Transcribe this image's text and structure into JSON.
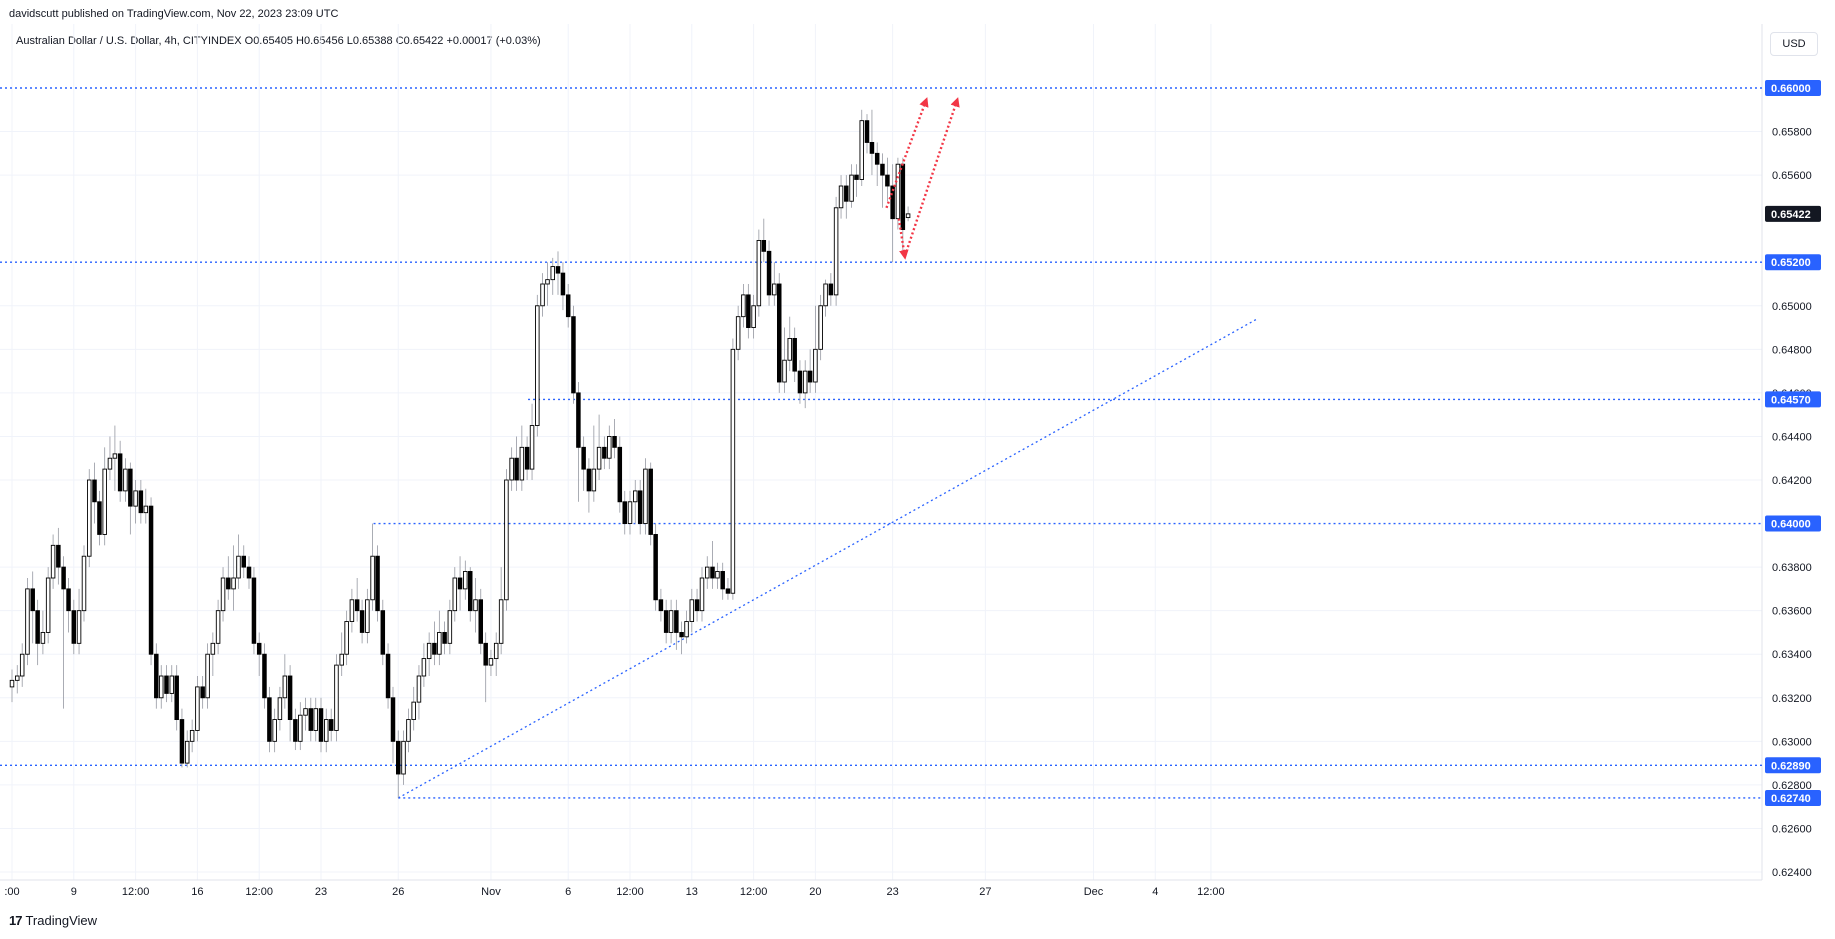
{
  "header": {
    "attribution": "davidscutt published on TradingView.com, Nov 22, 2023 23:09 UTC",
    "symbol_line": "Australian Dollar / U.S. Dollar, 4h, CITYINDEX  O0.65405  H0.65456  L0.65388  C0.65422  +0.00017 (+0.03%)",
    "currency": "USD"
  },
  "footer": {
    "logo_text": "TradingView",
    "logo_mark": "17"
  },
  "colors": {
    "level_line": "#2962ff",
    "arrow": "#f23645",
    "candle": "#000000",
    "current_badge": "#131722",
    "grid": "#f0f3fa"
  },
  "chart_data": {
    "type": "candlestick",
    "title": "Australian Dollar / U.S. Dollar, 4h, CITYINDEX",
    "ylim": [
      0.624,
      0.661
    ],
    "x_range_days": [
      0.0,
      40.5
    ],
    "y_ticks": [
      "0.65800",
      "0.65600",
      "0.65000",
      "0.64800",
      "0.64400",
      "0.64200",
      "0.63800",
      "0.63600",
      "0.63400",
      "0.63200",
      "0.63000",
      "0.62800",
      "0.62600"
    ],
    "y_ticks_partial": [
      "0.64600",
      "0.62400"
    ],
    "x_ticks": [
      {
        "label": ":00",
        "day": 0.0
      },
      {
        "label": "9",
        "day": 2.0
      },
      {
        "label": "12:00",
        "day": 4.0
      },
      {
        "label": "16",
        "day": 6.0
      },
      {
        "label": "12:00",
        "day": 8.0
      },
      {
        "label": "23",
        "day": 10.0
      },
      {
        "label": "26",
        "day": 12.5
      },
      {
        "label": "Nov",
        "day": 15.5
      },
      {
        "label": "6",
        "day": 18.0
      },
      {
        "label": "12:00",
        "day": 20.0
      },
      {
        "label": "13",
        "day": 22.0
      },
      {
        "label": "12:00",
        "day": 24.0
      },
      {
        "label": "20",
        "day": 26.0
      },
      {
        "label": "23",
        "day": 28.5
      },
      {
        "label": "27",
        "day": 31.5
      },
      {
        "label": "Dec",
        "day": 35.0
      },
      {
        "label": "4",
        "day": 37.0
      },
      {
        "label": "12:00",
        "day": 38.8
      }
    ],
    "levels": [
      {
        "label": "0.66000",
        "value": 0.66
      },
      {
        "label": "0.65200",
        "value": 0.652
      },
      {
        "label": "0.64570",
        "value": 0.6457,
        "start_day": 16.7
      },
      {
        "label": "0.64000",
        "value": 0.64,
        "start_day": 11.7
      },
      {
        "label": "0.62890",
        "value": 0.6289
      },
      {
        "label": "0.62740",
        "value": 0.6274,
        "start_day": 12.5
      }
    ],
    "current_price": {
      "label": "0.65422",
      "value": 0.65422
    },
    "trendline": {
      "points": [
        {
          "day": 12.5,
          "value": 0.6274
        },
        {
          "day": 40.3,
          "value": 0.6494
        }
      ]
    },
    "arrows": [
      {
        "from": {
          "day": 28.3,
          "value": 0.6545
        },
        "to": {
          "day": 29.6,
          "value": 0.6595
        }
      },
      {
        "from": {
          "day": 28.7,
          "value": 0.654
        },
        "to": {
          "day": 28.9,
          "value": 0.6522
        }
      },
      {
        "from": {
          "day": 28.9,
          "value": 0.6523
        },
        "to": {
          "day": 30.6,
          "value": 0.6595
        }
      }
    ],
    "candles": [
      [
        0.0,
        0.6325,
        0.6328,
        0.6318,
        0.6333
      ],
      [
        0.17,
        0.6328,
        0.633,
        0.6322,
        0.6335
      ],
      [
        0.33,
        0.633,
        0.634,
        0.6325,
        0.6345
      ],
      [
        0.5,
        0.634,
        0.637,
        0.6335,
        0.6375
      ],
      [
        0.67,
        0.637,
        0.636,
        0.6345,
        0.6378
      ],
      [
        0.83,
        0.636,
        0.6345,
        0.6335,
        0.6365
      ],
      [
        1.0,
        0.6345,
        0.635,
        0.634,
        0.636
      ],
      [
        1.17,
        0.635,
        0.6375,
        0.6345,
        0.638
      ],
      [
        1.33,
        0.6375,
        0.639,
        0.637,
        0.6395
      ],
      [
        1.5,
        0.639,
        0.638,
        0.6372,
        0.6398
      ],
      [
        1.67,
        0.638,
        0.637,
        0.6315,
        0.6385
      ],
      [
        1.83,
        0.637,
        0.636,
        0.635,
        0.6375
      ],
      [
        2.0,
        0.636,
        0.6345,
        0.634,
        0.6365
      ],
      [
        2.17,
        0.6345,
        0.636,
        0.634,
        0.637
      ],
      [
        2.33,
        0.636,
        0.6385,
        0.6355,
        0.639
      ],
      [
        2.5,
        0.6385,
        0.642,
        0.638,
        0.6425
      ],
      [
        2.67,
        0.642,
        0.641,
        0.64,
        0.6428
      ],
      [
        2.83,
        0.641,
        0.6395,
        0.639,
        0.6415
      ],
      [
        3.0,
        0.6395,
        0.6425,
        0.639,
        0.6435
      ],
      [
        3.17,
        0.6425,
        0.643,
        0.642,
        0.644
      ],
      [
        3.33,
        0.643,
        0.6432,
        0.6415,
        0.6445
      ],
      [
        3.5,
        0.6432,
        0.6415,
        0.641,
        0.6438
      ],
      [
        3.67,
        0.6415,
        0.6425,
        0.641,
        0.643
      ],
      [
        3.83,
        0.6425,
        0.6408,
        0.6395,
        0.6428
      ],
      [
        4.0,
        0.6408,
        0.6415,
        0.64,
        0.642
      ],
      [
        4.17,
        0.6415,
        0.6405,
        0.64,
        0.642
      ],
      [
        4.33,
        0.6405,
        0.6408,
        0.64,
        0.6416
      ],
      [
        4.5,
        0.6408,
        0.634,
        0.6335,
        0.6412
      ],
      [
        4.67,
        0.634,
        0.632,
        0.6315,
        0.6345
      ],
      [
        4.83,
        0.632,
        0.633,
        0.6315,
        0.6335
      ],
      [
        5.0,
        0.633,
        0.6322,
        0.6318,
        0.6335
      ],
      [
        5.17,
        0.6322,
        0.633,
        0.6318,
        0.6335
      ],
      [
        5.33,
        0.633,
        0.631,
        0.6305,
        0.6335
      ],
      [
        5.5,
        0.631,
        0.629,
        0.6288,
        0.6315
      ],
      [
        5.67,
        0.629,
        0.63,
        0.6288,
        0.6305
      ],
      [
        5.83,
        0.63,
        0.6305,
        0.6295,
        0.631
      ],
      [
        6.0,
        0.6305,
        0.6325,
        0.63,
        0.633
      ],
      [
        6.17,
        0.6325,
        0.632,
        0.6315,
        0.633
      ],
      [
        6.33,
        0.632,
        0.634,
        0.6315,
        0.6345
      ],
      [
        6.5,
        0.634,
        0.6345,
        0.633,
        0.635
      ],
      [
        6.67,
        0.6345,
        0.636,
        0.634,
        0.6365
      ],
      [
        6.83,
        0.636,
        0.6375,
        0.6355,
        0.638
      ],
      [
        7.0,
        0.6375,
        0.637,
        0.6365,
        0.6385
      ],
      [
        7.17,
        0.637,
        0.6375,
        0.636,
        0.639
      ],
      [
        7.33,
        0.6375,
        0.6385,
        0.637,
        0.6395
      ],
      [
        7.5,
        0.6385,
        0.638,
        0.6375,
        0.639
      ],
      [
        7.67,
        0.638,
        0.6375,
        0.637,
        0.6385
      ],
      [
        7.83,
        0.6375,
        0.6345,
        0.634,
        0.638
      ],
      [
        8.0,
        0.6345,
        0.634,
        0.633,
        0.635
      ],
      [
        8.17,
        0.634,
        0.632,
        0.6315,
        0.6345
      ],
      [
        8.33,
        0.632,
        0.63,
        0.6295,
        0.6325
      ],
      [
        8.5,
        0.63,
        0.631,
        0.6295,
        0.6315
      ],
      [
        8.67,
        0.631,
        0.632,
        0.6305,
        0.6325
      ],
      [
        8.83,
        0.632,
        0.633,
        0.6315,
        0.634
      ],
      [
        9.0,
        0.633,
        0.631,
        0.63,
        0.6335
      ],
      [
        9.17,
        0.631,
        0.63,
        0.6296,
        0.6315
      ],
      [
        9.33,
        0.63,
        0.6312,
        0.6296,
        0.6318
      ],
      [
        9.5,
        0.6312,
        0.6315,
        0.6305,
        0.632
      ],
      [
        9.67,
        0.6315,
        0.6305,
        0.63,
        0.632
      ],
      [
        9.83,
        0.6305,
        0.6315,
        0.63,
        0.632
      ],
      [
        10.0,
        0.6315,
        0.63,
        0.6295,
        0.632
      ],
      [
        10.17,
        0.63,
        0.631,
        0.6295,
        0.6315
      ],
      [
        10.33,
        0.631,
        0.6305,
        0.63,
        0.6315
      ],
      [
        10.5,
        0.6305,
        0.6335,
        0.63,
        0.634
      ],
      [
        10.67,
        0.6335,
        0.634,
        0.633,
        0.635
      ],
      [
        10.83,
        0.634,
        0.6355,
        0.6335,
        0.636
      ],
      [
        11.0,
        0.6355,
        0.6365,
        0.635,
        0.637
      ],
      [
        11.17,
        0.6365,
        0.636,
        0.6355,
        0.6375
      ],
      [
        11.33,
        0.636,
        0.635,
        0.6345,
        0.6365
      ],
      [
        11.5,
        0.635,
        0.6365,
        0.6345,
        0.637
      ],
      [
        11.67,
        0.6365,
        0.6385,
        0.636,
        0.64
      ],
      [
        11.83,
        0.6385,
        0.636,
        0.6355,
        0.639
      ],
      [
        12.0,
        0.636,
        0.634,
        0.6335,
        0.6365
      ],
      [
        12.17,
        0.634,
        0.632,
        0.6315,
        0.6345
      ],
      [
        12.33,
        0.632,
        0.63,
        0.629,
        0.6325
      ],
      [
        12.5,
        0.63,
        0.6285,
        0.6274,
        0.6305
      ],
      [
        12.67,
        0.6285,
        0.63,
        0.628,
        0.6305
      ],
      [
        12.83,
        0.63,
        0.631,
        0.6295,
        0.6315
      ],
      [
        13.0,
        0.631,
        0.6318,
        0.6305,
        0.6325
      ],
      [
        13.17,
        0.6318,
        0.633,
        0.631,
        0.6335
      ],
      [
        13.33,
        0.633,
        0.6338,
        0.6325,
        0.6345
      ],
      [
        13.5,
        0.6338,
        0.6345,
        0.633,
        0.635
      ],
      [
        13.67,
        0.6345,
        0.634,
        0.6335,
        0.6355
      ],
      [
        13.83,
        0.634,
        0.635,
        0.6335,
        0.636
      ],
      [
        14.0,
        0.635,
        0.6345,
        0.634,
        0.6355
      ],
      [
        14.17,
        0.6345,
        0.636,
        0.634,
        0.6365
      ],
      [
        14.33,
        0.636,
        0.6375,
        0.6355,
        0.638
      ],
      [
        14.5,
        0.6375,
        0.637,
        0.636,
        0.6385
      ],
      [
        14.67,
        0.637,
        0.6378,
        0.6365,
        0.6383
      ],
      [
        14.83,
        0.6378,
        0.636,
        0.6355,
        0.638
      ],
      [
        15.0,
        0.636,
        0.6365,
        0.635,
        0.6375
      ],
      [
        15.17,
        0.6365,
        0.6345,
        0.634,
        0.637
      ],
      [
        15.33,
        0.6345,
        0.6335,
        0.6318,
        0.635
      ],
      [
        15.5,
        0.6335,
        0.6338,
        0.633,
        0.6342
      ],
      [
        15.67,
        0.6338,
        0.6345,
        0.633,
        0.635
      ],
      [
        15.83,
        0.6345,
        0.6365,
        0.634,
        0.638
      ],
      [
        16.0,
        0.6365,
        0.642,
        0.636,
        0.6425
      ],
      [
        16.17,
        0.642,
        0.643,
        0.6415,
        0.6435
      ],
      [
        16.33,
        0.643,
        0.642,
        0.6415,
        0.644
      ],
      [
        16.5,
        0.642,
        0.6435,
        0.6415,
        0.6445
      ],
      [
        16.67,
        0.6435,
        0.6425,
        0.642,
        0.644
      ],
      [
        16.83,
        0.6425,
        0.6445,
        0.642,
        0.6455
      ],
      [
        17.0,
        0.6445,
        0.65,
        0.644,
        0.6505
      ],
      [
        17.17,
        0.65,
        0.651,
        0.6495,
        0.6515
      ],
      [
        17.33,
        0.651,
        0.6512,
        0.65,
        0.652
      ],
      [
        17.5,
        0.6512,
        0.6518,
        0.6505,
        0.6522
      ],
      [
        17.67,
        0.6518,
        0.6515,
        0.6505,
        0.6525
      ],
      [
        17.83,
        0.6515,
        0.6505,
        0.6498,
        0.652
      ],
      [
        18.0,
        0.6505,
        0.6495,
        0.649,
        0.651
      ],
      [
        18.17,
        0.6495,
        0.646,
        0.6455,
        0.65
      ],
      [
        18.33,
        0.646,
        0.6435,
        0.641,
        0.6465
      ],
      [
        18.5,
        0.6435,
        0.6425,
        0.6415,
        0.644
      ],
      [
        18.67,
        0.6425,
        0.6415,
        0.6405,
        0.643
      ],
      [
        18.83,
        0.6415,
        0.6425,
        0.641,
        0.6445
      ],
      [
        19.0,
        0.6425,
        0.6435,
        0.642,
        0.645
      ],
      [
        19.17,
        0.6435,
        0.643,
        0.6425,
        0.644
      ],
      [
        19.33,
        0.643,
        0.644,
        0.6425,
        0.6445
      ],
      [
        19.5,
        0.644,
        0.6435,
        0.643,
        0.6448
      ],
      [
        19.67,
        0.6435,
        0.641,
        0.6405,
        0.644
      ],
      [
        19.83,
        0.641,
        0.64,
        0.6395,
        0.6415
      ],
      [
        20.0,
        0.64,
        0.641,
        0.6395,
        0.6415
      ],
      [
        20.17,
        0.641,
        0.6415,
        0.64,
        0.642
      ],
      [
        20.33,
        0.6415,
        0.64,
        0.6395,
        0.642
      ],
      [
        20.5,
        0.64,
        0.6425,
        0.6395,
        0.643
      ],
      [
        20.67,
        0.6425,
        0.6395,
        0.639,
        0.6428
      ],
      [
        20.83,
        0.6395,
        0.6365,
        0.636,
        0.64
      ],
      [
        21.0,
        0.6365,
        0.636,
        0.6355,
        0.637
      ],
      [
        21.17,
        0.636,
        0.635,
        0.6345,
        0.6365
      ],
      [
        21.33,
        0.635,
        0.636,
        0.6345,
        0.6365
      ],
      [
        21.5,
        0.636,
        0.635,
        0.6342,
        0.6365
      ],
      [
        21.67,
        0.635,
        0.6348,
        0.634,
        0.6355
      ],
      [
        21.83,
        0.6348,
        0.6355,
        0.6345,
        0.636
      ],
      [
        22.0,
        0.6355,
        0.6365,
        0.635,
        0.637
      ],
      [
        22.17,
        0.6365,
        0.636,
        0.6355,
        0.637
      ],
      [
        22.33,
        0.636,
        0.6375,
        0.6355,
        0.638
      ],
      [
        22.5,
        0.6375,
        0.638,
        0.637,
        0.6385
      ],
      [
        22.67,
        0.638,
        0.6375,
        0.637,
        0.6392
      ],
      [
        22.83,
        0.6375,
        0.6378,
        0.637,
        0.6382
      ],
      [
        23.0,
        0.6378,
        0.637,
        0.6365,
        0.6382
      ],
      [
        23.17,
        0.637,
        0.6368,
        0.6365,
        0.6375
      ],
      [
        23.33,
        0.6368,
        0.648,
        0.6365,
        0.6485
      ],
      [
        23.5,
        0.648,
        0.6495,
        0.6475,
        0.65
      ],
      [
        23.67,
        0.6495,
        0.6505,
        0.649,
        0.651
      ],
      [
        23.83,
        0.6505,
        0.649,
        0.6485,
        0.651
      ],
      [
        24.0,
        0.649,
        0.65,
        0.6485,
        0.6505
      ],
      [
        24.17,
        0.65,
        0.653,
        0.6495,
        0.6535
      ],
      [
        24.33,
        0.653,
        0.6525,
        0.652,
        0.654
      ],
      [
        24.5,
        0.6525,
        0.6505,
        0.65,
        0.653
      ],
      [
        24.67,
        0.6505,
        0.651,
        0.65,
        0.652
      ],
      [
        24.83,
        0.651,
        0.6465,
        0.646,
        0.6515
      ],
      [
        25.0,
        0.6465,
        0.6475,
        0.646,
        0.649
      ],
      [
        25.17,
        0.6475,
        0.6485,
        0.647,
        0.6495
      ],
      [
        25.33,
        0.6485,
        0.647,
        0.6465,
        0.649
      ],
      [
        25.5,
        0.647,
        0.646,
        0.6455,
        0.6475
      ],
      [
        25.67,
        0.646,
        0.647,
        0.6453,
        0.6475
      ],
      [
        25.83,
        0.647,
        0.6465,
        0.646,
        0.648
      ],
      [
        26.0,
        0.6465,
        0.648,
        0.646,
        0.65
      ],
      [
        26.17,
        0.648,
        0.65,
        0.6475,
        0.6505
      ],
      [
        26.33,
        0.65,
        0.651,
        0.6495,
        0.6512
      ],
      [
        26.5,
        0.651,
        0.6505,
        0.65,
        0.6515
      ],
      [
        26.67,
        0.6505,
        0.6545,
        0.65,
        0.655
      ],
      [
        26.83,
        0.6545,
        0.6555,
        0.654,
        0.656
      ],
      [
        27.0,
        0.6555,
        0.6548,
        0.654,
        0.656
      ],
      [
        27.17,
        0.6548,
        0.656,
        0.6545,
        0.6565
      ],
      [
        27.33,
        0.656,
        0.6558,
        0.655,
        0.6565
      ],
      [
        27.5,
        0.6558,
        0.6585,
        0.6555,
        0.659
      ],
      [
        27.67,
        0.6585,
        0.6575,
        0.657,
        0.6588
      ],
      [
        27.83,
        0.6575,
        0.657,
        0.656,
        0.659
      ],
      [
        28.0,
        0.657,
        0.6565,
        0.6555,
        0.6575
      ],
      [
        28.17,
        0.6565,
        0.656,
        0.6545,
        0.657
      ],
      [
        28.33,
        0.656,
        0.6555,
        0.6548,
        0.6568
      ],
      [
        28.5,
        0.6555,
        0.654,
        0.652,
        0.6565
      ],
      [
        28.67,
        0.654,
        0.6565,
        0.6535,
        0.6568
      ],
      [
        28.83,
        0.6565,
        0.6535,
        0.6525,
        0.6568
      ],
      [
        29.0,
        0.65405,
        0.65422,
        0.65388,
        0.65456
      ]
    ]
  }
}
